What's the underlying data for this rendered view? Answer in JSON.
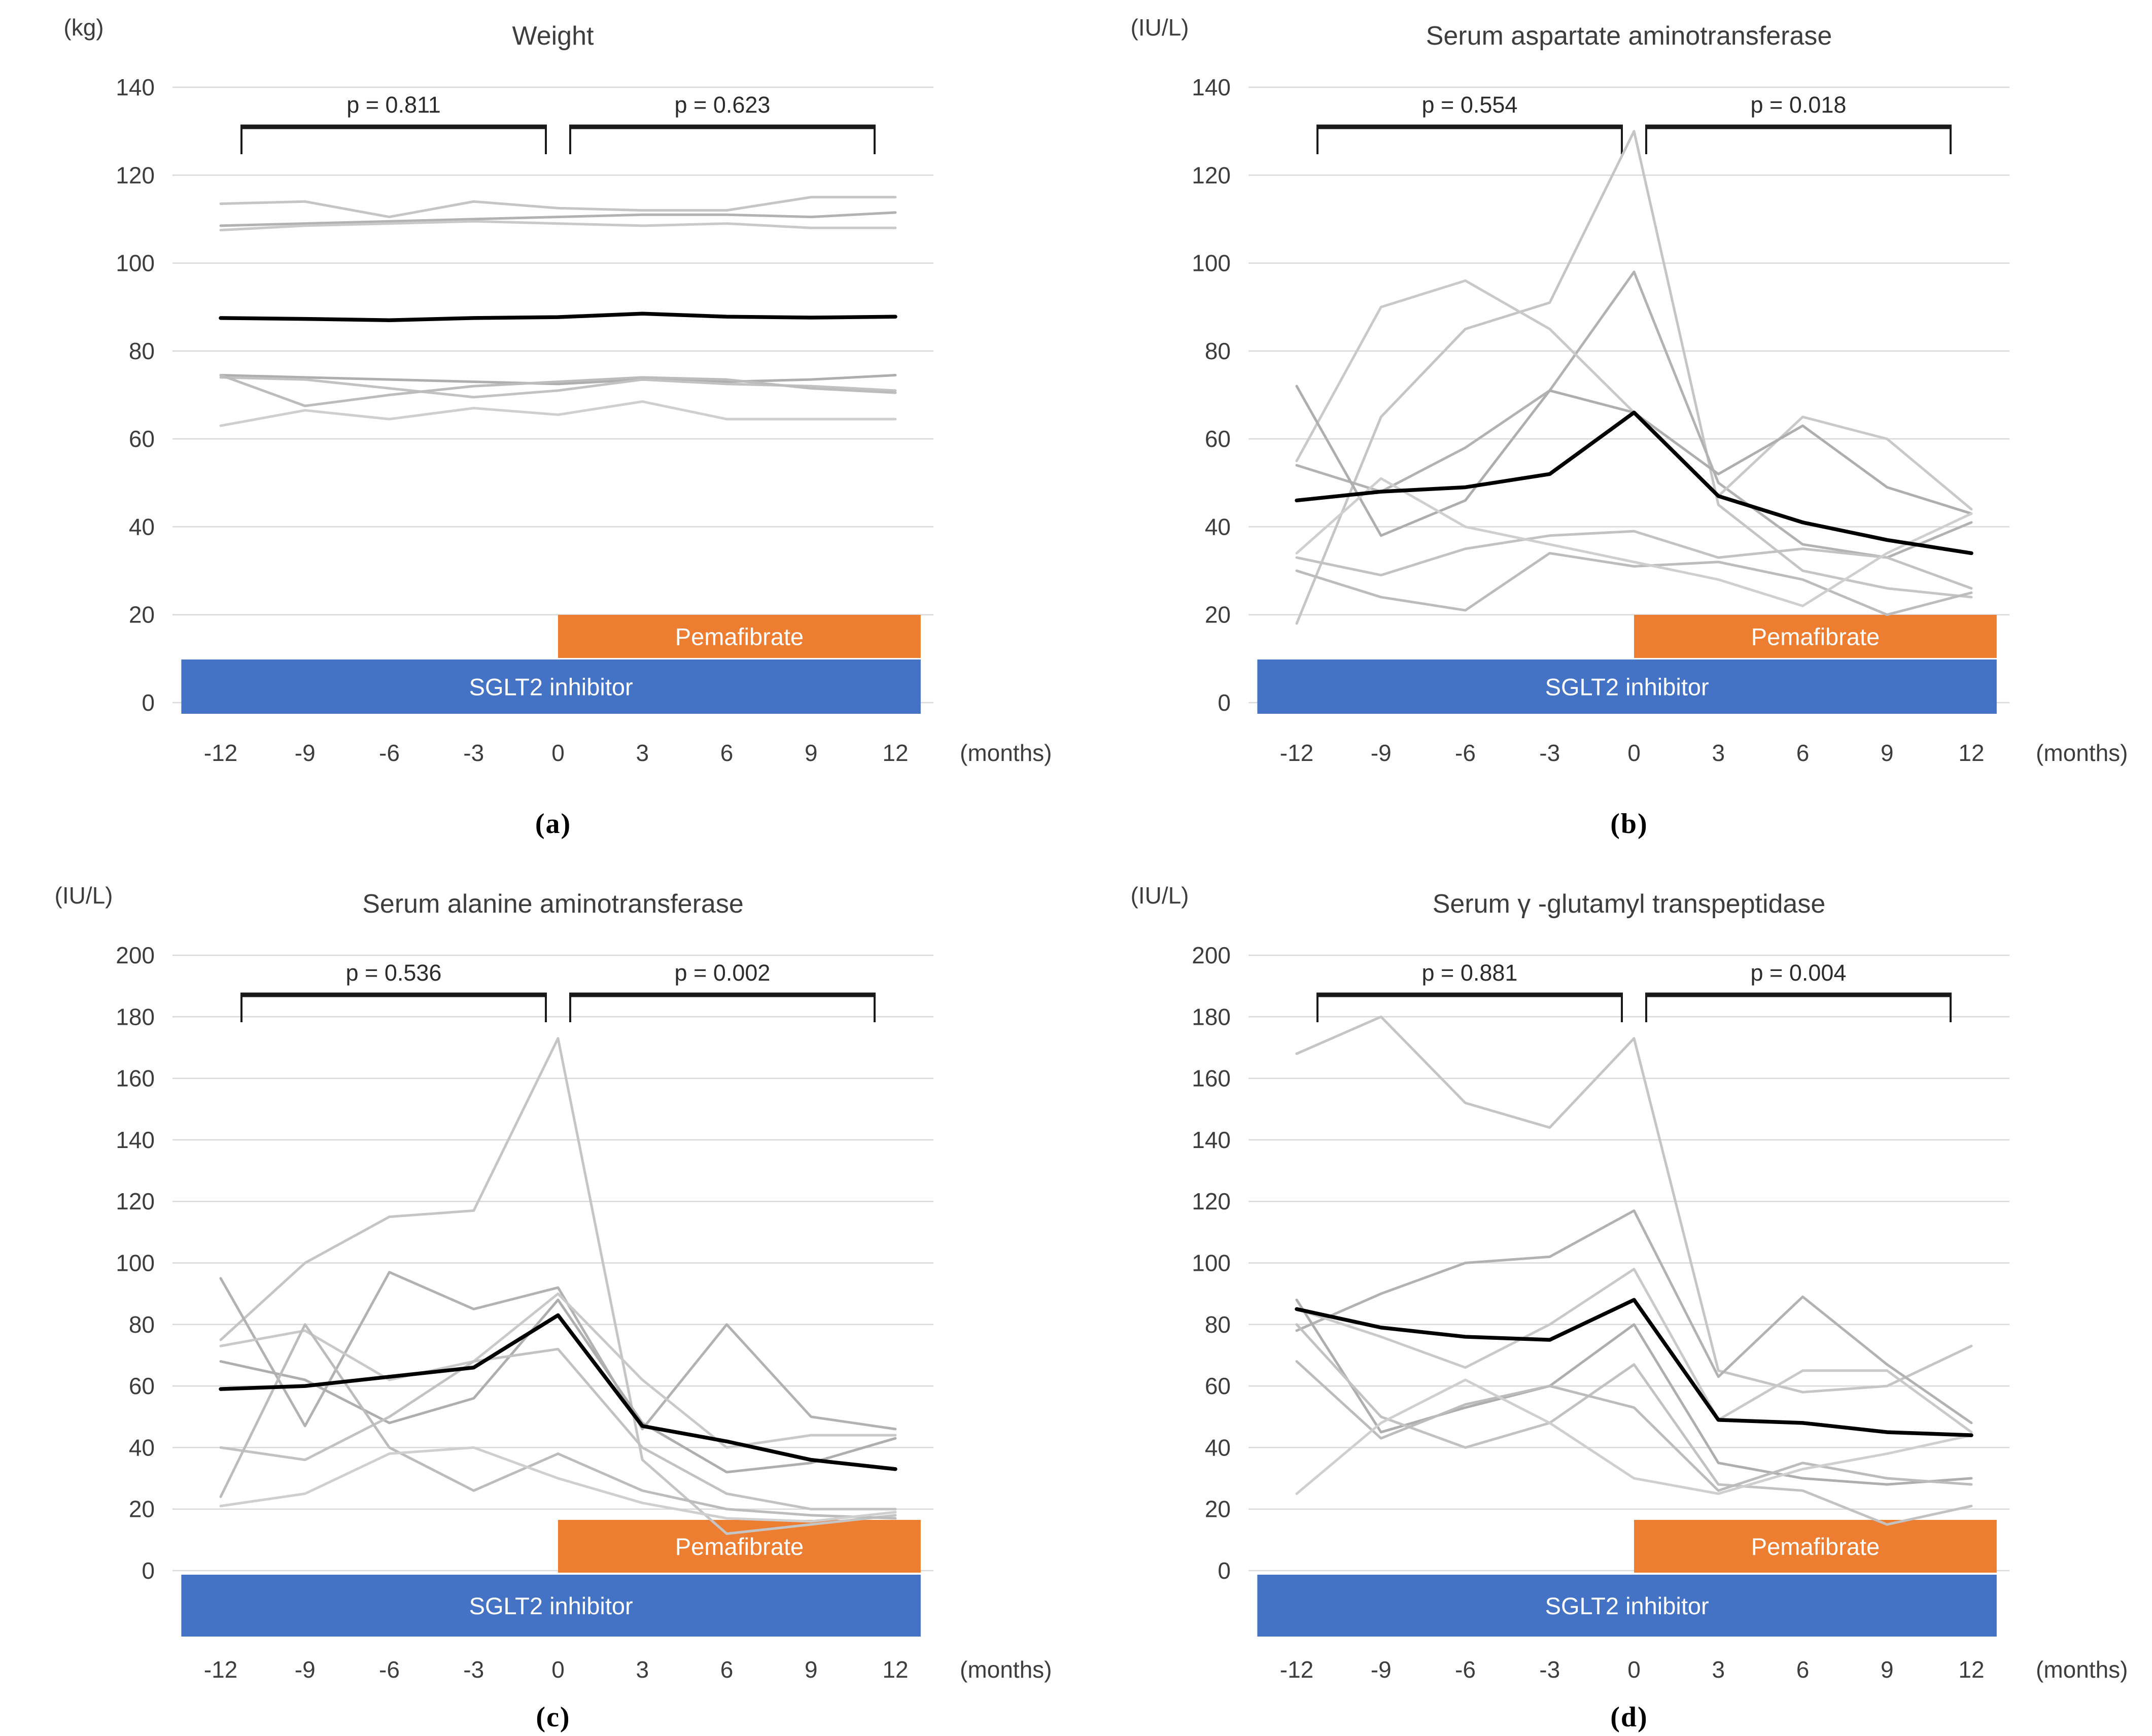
{
  "figure": {
    "background": "#ffffff",
    "text_color": "#3d3d3d",
    "gridline_color": "#d9d9d9",
    "bracket_color": "#1a1a1a",
    "mean_line_color": "#000000",
    "patient_line_colors": [
      "#c5c5c5",
      "#b2b2b2",
      "#c9c9c9",
      "#aeaeae",
      "#c2c2c2",
      "#bcbcbc",
      "#cfcfcf"
    ],
    "pemafibrate_color": "#ED7D31",
    "sglt2_color": "#4472C4",
    "bar_text_color": "#ffffff"
  },
  "chart_data": [
    {
      "id": "a",
      "type": "line",
      "label": "(a)",
      "title": "Weight",
      "unit": "(kg)",
      "p_left": "p = 0.811",
      "p_right": "p = 0.623",
      "ylim": [
        0,
        140
      ],
      "ytick_step": 20,
      "ytick_labels": [
        "140",
        "120",
        "100",
        "80",
        "60",
        "40",
        "20",
        "0"
      ],
      "x": [
        -12,
        -9,
        -6,
        -3,
        0,
        3,
        6,
        9,
        12
      ],
      "xtick_labels": [
        "-12",
        "-9",
        "-6",
        "-3",
        "0",
        "3",
        "6",
        "9",
        "12"
      ],
      "xlabel": "(months)",
      "grid": true,
      "legend": "none",
      "bars": [
        {
          "name": "pemafibrate",
          "label": "Pemafibrate",
          "x_start": 0,
          "x_end": 12.9
        },
        {
          "name": "sglt2-inhibitor",
          "label": "SGLT2 inhibitor",
          "x_start": -13.4,
          "x_end": 12.9
        }
      ],
      "series": [
        {
          "name": "patient-1",
          "values": [
            113.5,
            114,
            110.5,
            114,
            112.5,
            112,
            112,
            115,
            115
          ]
        },
        {
          "name": "patient-2",
          "values": [
            108.5,
            109,
            109.5,
            110,
            110.5,
            111,
            111,
            110.5,
            111.5
          ]
        },
        {
          "name": "patient-3",
          "values": [
            107.5,
            108.5,
            109,
            109.5,
            109,
            108.5,
            109,
            108,
            108
          ]
        },
        {
          "name": "patient-4",
          "values": [
            74.5,
            74,
            73.5,
            73,
            72.5,
            73.5,
            73,
            73.5,
            74.5
          ]
        },
        {
          "name": "patient-5",
          "values": [
            74,
            73.5,
            71.5,
            69.5,
            71,
            73.5,
            72.5,
            72,
            71
          ]
        },
        {
          "name": "patient-6",
          "values": [
            74.5,
            67.5,
            70,
            72,
            73,
            74,
            73.5,
            71.5,
            70.5
          ]
        },
        {
          "name": "patient-7",
          "values": [
            63,
            66.5,
            64.5,
            67,
            65.5,
            68.5,
            64.5,
            64.5,
            64.5
          ]
        },
        {
          "name": "mean",
          "emphasis": true,
          "values": [
            87.5,
            87.3,
            87,
            87.5,
            87.7,
            88.5,
            87.8,
            87.6,
            87.8
          ]
        }
      ]
    },
    {
      "id": "b",
      "type": "line",
      "label": "(b)",
      "title": "Serum aspartate aminotransferase",
      "unit": "(IU/L)",
      "p_left": "p = 0.554",
      "p_right": "p = 0.018",
      "ylim": [
        0,
        140
      ],
      "ytick_step": 20,
      "ytick_labels": [
        "140",
        "120",
        "100",
        "80",
        "60",
        "40",
        "20",
        "0"
      ],
      "x": [
        -12,
        -9,
        -6,
        -3,
        0,
        3,
        6,
        9,
        12
      ],
      "xtick_labels": [
        "-12",
        "-9",
        "-6",
        "-3",
        "0",
        "3",
        "6",
        "9",
        "12"
      ],
      "xlabel": "(months)",
      "grid": true,
      "legend": "none",
      "bars": [
        {
          "name": "pemafibrate",
          "label": "Pemafibrate",
          "x_start": 0,
          "x_end": 12.9
        },
        {
          "name": "sglt2-inhibitor",
          "label": "SGLT2 inhibitor",
          "x_start": -13.4,
          "x_end": 12.9
        }
      ],
      "series": [
        {
          "name": "patient-1",
          "values": [
            18,
            65,
            85,
            91,
            130,
            45,
            30,
            26,
            24
          ]
        },
        {
          "name": "patient-2",
          "values": [
            54,
            48,
            58,
            71,
            98,
            50,
            36,
            33,
            41
          ]
        },
        {
          "name": "patient-3",
          "values": [
            55,
            90,
            96,
            85,
            66,
            47,
            65,
            60,
            44
          ]
        },
        {
          "name": "patient-4",
          "values": [
            72,
            38,
            46,
            71,
            66,
            52,
            63,
            49,
            43
          ]
        },
        {
          "name": "patient-5",
          "values": [
            33,
            29,
            35,
            38,
            39,
            33,
            35,
            33,
            26
          ]
        },
        {
          "name": "patient-6",
          "values": [
            30,
            24,
            21,
            34,
            31,
            32,
            28,
            20,
            25
          ]
        },
        {
          "name": "patient-7",
          "values": [
            34,
            51,
            40,
            36,
            32,
            28,
            22,
            34,
            43
          ]
        },
        {
          "name": "mean",
          "emphasis": true,
          "values": [
            46,
            48,
            49,
            52,
            66,
            47,
            41,
            37,
            34
          ]
        }
      ]
    },
    {
      "id": "c",
      "type": "line",
      "label": "(c)",
      "title": "Serum alanine aminotransferase",
      "unit": "(IU/L)",
      "p_left": "p = 0.536",
      "p_right": "p = 0.002",
      "ylim": [
        0,
        200
      ],
      "ytick_step": 20,
      "ytick_labels": [
        "200",
        "180",
        "160",
        "140",
        "120",
        "100",
        "80",
        "60",
        "40",
        "20",
        "0"
      ],
      "x": [
        -12,
        -9,
        -6,
        -3,
        0,
        3,
        6,
        9,
        12
      ],
      "xtick_labels": [
        "-12",
        "-9",
        "-6",
        "-3",
        "0",
        "3",
        "6",
        "9",
        "12"
      ],
      "xlabel": "(months)",
      "grid": true,
      "legend": "none",
      "bars": [
        {
          "name": "pemafibrate",
          "label": "Pemafibrate",
          "x_start": 0,
          "x_end": 12.9
        },
        {
          "name": "sglt2-inhibitor",
          "label": "SGLT2 inhibitor",
          "x_start": -13.4,
          "x_end": 12.9
        }
      ],
      "series": [
        {
          "name": "patient-1",
          "values": [
            75,
            100,
            115,
            117,
            173,
            36,
            12,
            15,
            18
          ]
        },
        {
          "name": "patient-2",
          "values": [
            95,
            47,
            97,
            85,
            92,
            46,
            80,
            50,
            46
          ]
        },
        {
          "name": "patient-3",
          "values": [
            73,
            78,
            62,
            68,
            90,
            62,
            40,
            44,
            44
          ]
        },
        {
          "name": "patient-4",
          "values": [
            68,
            62,
            48,
            56,
            88,
            48,
            32,
            35,
            43
          ]
        },
        {
          "name": "patient-5",
          "values": [
            40,
            36,
            50,
            68,
            72,
            40,
            25,
            20,
            20
          ]
        },
        {
          "name": "patient-6",
          "values": [
            24,
            80,
            40,
            26,
            38,
            26,
            20,
            18,
            17
          ]
        },
        {
          "name": "patient-7",
          "values": [
            21,
            25,
            38,
            40,
            30,
            22,
            17,
            16,
            19
          ]
        },
        {
          "name": "mean",
          "emphasis": true,
          "values": [
            59,
            60,
            63,
            66,
            83,
            47,
            42,
            36,
            33
          ]
        }
      ]
    },
    {
      "id": "d",
      "type": "line",
      "label": "(d)",
      "title": "Serum γ -glutamyl transpeptidase",
      "unit": "(IU/L)",
      "p_left": "p = 0.881",
      "p_right": "p = 0.004",
      "ylim": [
        0,
        200
      ],
      "ytick_step": 20,
      "ytick_labels": [
        "200",
        "180",
        "160",
        "140",
        "120",
        "100",
        "80",
        "60",
        "40",
        "20",
        "0"
      ],
      "x": [
        -12,
        -9,
        -6,
        -3,
        0,
        3,
        6,
        9,
        12
      ],
      "xtick_labels": [
        "-12",
        "-9",
        "-6",
        "-3",
        "0",
        "3",
        "6",
        "9",
        "12"
      ],
      "xlabel": "(months)",
      "grid": true,
      "legend": "none",
      "bars": [
        {
          "name": "pemafibrate",
          "label": "Pemafibrate",
          "x_start": 0,
          "x_end": 12.9
        },
        {
          "name": "sglt2-inhibitor",
          "label": "SGLT2 inhibitor",
          "x_start": -13.4,
          "x_end": 12.9
        }
      ],
      "series": [
        {
          "name": "patient-1",
          "values": [
            168,
            180,
            152,
            144,
            173,
            65,
            58,
            60,
            73
          ]
        },
        {
          "name": "patient-2",
          "values": [
            78,
            90,
            100,
            102,
            117,
            63,
            89,
            67,
            48
          ]
        },
        {
          "name": "patient-3",
          "values": [
            85,
            76,
            66,
            80,
            98,
            49,
            65,
            65,
            45
          ]
        },
        {
          "name": "patient-4",
          "values": [
            88,
            45,
            53,
            60,
            80,
            35,
            30,
            28,
            30
          ]
        },
        {
          "name": "patient-5",
          "values": [
            80,
            50,
            40,
            48,
            67,
            28,
            26,
            15,
            21
          ]
        },
        {
          "name": "patient-6",
          "values": [
            68,
            43,
            54,
            60,
            53,
            26,
            35,
            30,
            28
          ]
        },
        {
          "name": "patient-7",
          "values": [
            25,
            48,
            62,
            48,
            30,
            25,
            33,
            38,
            44
          ]
        },
        {
          "name": "mean",
          "emphasis": true,
          "values": [
            85,
            79,
            76,
            75,
            88,
            49,
            48,
            45,
            44
          ]
        }
      ]
    }
  ]
}
